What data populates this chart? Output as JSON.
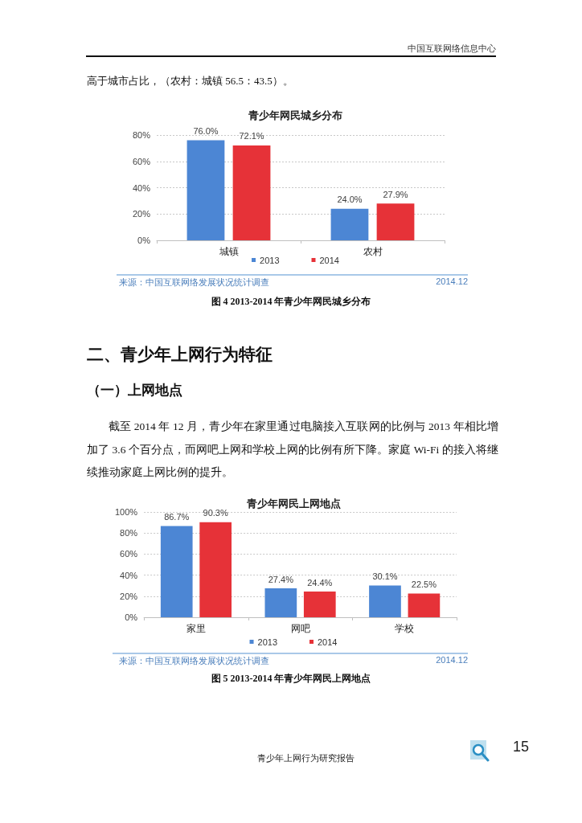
{
  "chart_data": [
    {
      "type": "bar",
      "title": "青少年网民城乡分布",
      "categories": [
        "城镇",
        "农村"
      ],
      "series": [
        {
          "name": "2013",
          "color": "#4c86d4",
          "values": [
            76.0,
            24.0
          ],
          "value_labels": [
            "76.0%",
            "24.0%"
          ]
        },
        {
          "name": "2014",
          "color": "#e63238",
          "values": [
            72.1,
            27.9
          ],
          "value_labels": [
            "72.1%",
            "27.9%"
          ]
        }
      ],
      "ylim": [
        0,
        80
      ],
      "yticks": [
        {
          "value": 0,
          "label": "0%"
        },
        {
          "value": 20,
          "label": "20%"
        },
        {
          "value": 40,
          "label": "40%"
        },
        {
          "value": 60,
          "label": "60%"
        },
        {
          "value": 80,
          "label": "80%"
        }
      ],
      "grid": "y",
      "legend": "bottom",
      "annotations": [
        "中国互联网络信息中心",
        "高于城市占比，（农村：城镇 56.5：43.5）。",
        "来源：中国互联网络发展状况统计调查",
        "2014.12",
        "图 4 2013-2014 年青少年网民城乡分布"
      ]
    },
    {
      "type": "bar",
      "title": "青少年网民上网地点",
      "categories": [
        "家里",
        "网吧",
        "学校"
      ],
      "series": [
        {
          "name": "2013",
          "color": "#4c86d4",
          "values": [
            86.7,
            27.4,
            30.1
          ],
          "value_labels": [
            "86.7%",
            "27.4%",
            "30.1%"
          ]
        },
        {
          "name": "2014",
          "color": "#e63238",
          "values": [
            90.3,
            24.4,
            22.5
          ],
          "value_labels": [
            "90.3%",
            "24.4%",
            "22.5%"
          ]
        }
      ],
      "ylim": [
        0,
        100
      ],
      "yticks": [
        {
          "value": 0,
          "label": "0%"
        },
        {
          "value": 20,
          "label": "20%"
        },
        {
          "value": 40,
          "label": "40%"
        },
        {
          "value": 60,
          "label": "60%"
        },
        {
          "value": 80,
          "label": "80%"
        },
        {
          "value": 100,
          "label": "100%"
        }
      ],
      "grid": "y",
      "legend": "bottom",
      "annotations": [
        "二、青少年上网行为特征",
        "（一）上网地点",
        "截至 2014 年 12 月，青少年在家里通过电脑接入互联网的比例与 2013 年相比增加了 3.6 个百分点，而网吧上网和学校上网的比例有所下降。家庭 Wi-Fi 的接入将继续推动家庭上网比例的提升。",
        "来源：中国互联网络发展状况统计调查",
        "2014.12",
        "图 5 2013-2014 年青少年网民上网地点",
        "青少年上网行为研究报告",
        "15"
      ]
    }
  ]
}
